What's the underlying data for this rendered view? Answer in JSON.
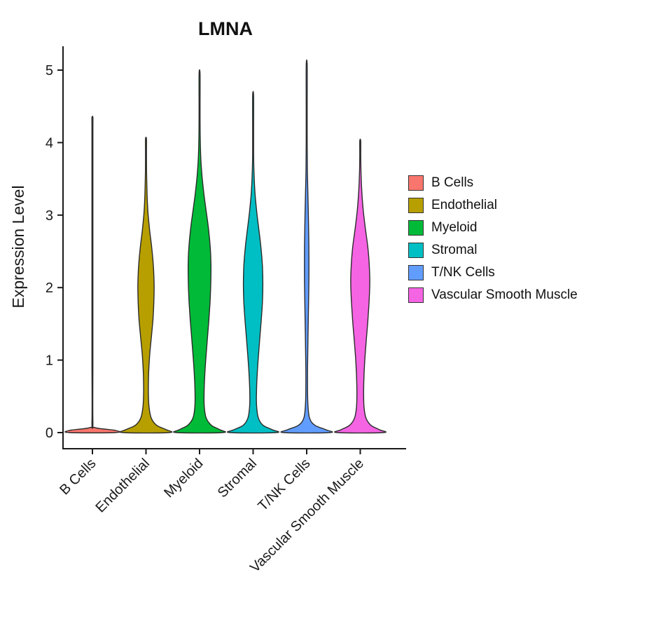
{
  "chart_data": {
    "type": "violin",
    "title": "LMNA",
    "ylabel": "Expression Level",
    "xlabel": "",
    "ylim": [
      0,
      5.2
    ],
    "yticks": [
      0,
      1,
      2,
      3,
      4,
      5
    ],
    "grid": false,
    "legend_position": "right",
    "categories": [
      "B Cells",
      "Endothelial",
      "Myeloid",
      "Stromal",
      "T/NK Cells",
      "Vascular Smooth Muscle"
    ],
    "colors": [
      "#F8766D",
      "#B79F00",
      "#00BA38",
      "#00BFC4",
      "#619CFF",
      "#F564E3"
    ],
    "legend": {
      "items": [
        {
          "label": "B Cells",
          "color": "#F8766D"
        },
        {
          "label": "Endothelial",
          "color": "#B79F00"
        },
        {
          "label": "Myeloid",
          "color": "#00BA38"
        },
        {
          "label": "Stromal",
          "color": "#00BFC4"
        },
        {
          "label": "T/NK Cells",
          "color": "#619CFF"
        },
        {
          "label": "Vascular Smooth Muscle",
          "color": "#F564E3"
        }
      ]
    },
    "violins": [
      {
        "name": "B Cells",
        "color": "#F8766D",
        "max": 4.35,
        "profile": [
          [
            0,
            0.97
          ],
          [
            0.03,
            0.97
          ],
          [
            0.07,
            0.1
          ],
          [
            0.15,
            0.02
          ],
          [
            1.0,
            0.015
          ],
          [
            2.0,
            0.015
          ],
          [
            3.0,
            0.015
          ],
          [
            4.0,
            0.012
          ],
          [
            4.25,
            0.01
          ],
          [
            4.35,
            0.008
          ]
        ]
      },
      {
        "name": "Endothelial",
        "color": "#B79F00",
        "max": 4.05,
        "profile": [
          [
            0,
            0.97
          ],
          [
            0.04,
            0.85
          ],
          [
            0.1,
            0.45
          ],
          [
            0.2,
            0.22
          ],
          [
            0.35,
            0.13
          ],
          [
            0.55,
            0.1
          ],
          [
            0.8,
            0.11
          ],
          [
            1.05,
            0.15
          ],
          [
            1.3,
            0.22
          ],
          [
            1.55,
            0.29
          ],
          [
            1.8,
            0.33
          ],
          [
            2.05,
            0.34
          ],
          [
            2.3,
            0.31
          ],
          [
            2.55,
            0.24
          ],
          [
            2.8,
            0.15
          ],
          [
            3.05,
            0.08
          ],
          [
            3.3,
            0.045
          ],
          [
            3.6,
            0.025
          ],
          [
            3.85,
            0.015
          ],
          [
            4.05,
            0.008
          ]
        ]
      },
      {
        "name": "Myeloid",
        "color": "#00BA38",
        "max": 4.95,
        "profile": [
          [
            0,
            0.97
          ],
          [
            0.04,
            0.85
          ],
          [
            0.1,
            0.5
          ],
          [
            0.2,
            0.28
          ],
          [
            0.35,
            0.2
          ],
          [
            0.55,
            0.19
          ],
          [
            0.8,
            0.22
          ],
          [
            1.05,
            0.27
          ],
          [
            1.3,
            0.33
          ],
          [
            1.55,
            0.39
          ],
          [
            1.8,
            0.44
          ],
          [
            2.05,
            0.47
          ],
          [
            2.3,
            0.48
          ],
          [
            2.55,
            0.45
          ],
          [
            2.8,
            0.38
          ],
          [
            3.05,
            0.28
          ],
          [
            3.3,
            0.18
          ],
          [
            3.55,
            0.1
          ],
          [
            3.8,
            0.05
          ],
          [
            4.1,
            0.025
          ],
          [
            4.5,
            0.015
          ],
          [
            4.95,
            0.008
          ]
        ]
      },
      {
        "name": "Stromal",
        "color": "#00BFC4",
        "max": 4.65,
        "profile": [
          [
            0,
            0.97
          ],
          [
            0.04,
            0.8
          ],
          [
            0.1,
            0.42
          ],
          [
            0.2,
            0.22
          ],
          [
            0.35,
            0.15
          ],
          [
            0.55,
            0.14
          ],
          [
            0.8,
            0.17
          ],
          [
            1.05,
            0.22
          ],
          [
            1.3,
            0.28
          ],
          [
            1.55,
            0.34
          ],
          [
            1.8,
            0.39
          ],
          [
            2.05,
            0.41
          ],
          [
            2.3,
            0.39
          ],
          [
            2.55,
            0.33
          ],
          [
            2.8,
            0.24
          ],
          [
            3.05,
            0.15
          ],
          [
            3.3,
            0.08
          ],
          [
            3.55,
            0.04
          ],
          [
            3.85,
            0.02
          ],
          [
            4.2,
            0.012
          ],
          [
            4.65,
            0.008
          ]
        ]
      },
      {
        "name": "T/NK Cells",
        "color": "#619CFF",
        "max": 5.07,
        "profile": [
          [
            0,
            0.97
          ],
          [
            0.04,
            0.8
          ],
          [
            0.1,
            0.35
          ],
          [
            0.2,
            0.12
          ],
          [
            0.4,
            0.05
          ],
          [
            0.7,
            0.035
          ],
          [
            1.0,
            0.04
          ],
          [
            1.4,
            0.06
          ],
          [
            1.8,
            0.08
          ],
          [
            2.2,
            0.095
          ],
          [
            2.6,
            0.09
          ],
          [
            3.0,
            0.07
          ],
          [
            3.3,
            0.05
          ],
          [
            3.6,
            0.03
          ],
          [
            4.0,
            0.018
          ],
          [
            4.5,
            0.012
          ],
          [
            5.07,
            0.008
          ]
        ]
      },
      {
        "name": "Vascular Smooth Muscle",
        "color": "#F564E3",
        "max": 4.02,
        "profile": [
          [
            0,
            0.97
          ],
          [
            0.04,
            0.8
          ],
          [
            0.1,
            0.45
          ],
          [
            0.2,
            0.24
          ],
          [
            0.35,
            0.16
          ],
          [
            0.55,
            0.14
          ],
          [
            0.8,
            0.16
          ],
          [
            1.05,
            0.2
          ],
          [
            1.3,
            0.26
          ],
          [
            1.55,
            0.32
          ],
          [
            1.8,
            0.37
          ],
          [
            2.05,
            0.4
          ],
          [
            2.3,
            0.38
          ],
          [
            2.55,
            0.32
          ],
          [
            2.8,
            0.22
          ],
          [
            3.05,
            0.13
          ],
          [
            3.3,
            0.07
          ],
          [
            3.55,
            0.035
          ],
          [
            3.8,
            0.015
          ],
          [
            4.02,
            0.008
          ]
        ]
      }
    ]
  }
}
